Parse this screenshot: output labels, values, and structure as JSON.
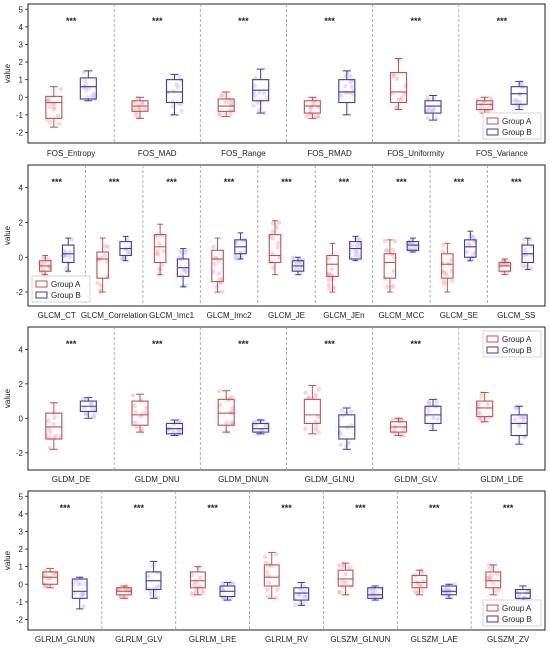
{
  "colors": {
    "group_a": "#c0504d",
    "group_b": "#3a3ab0",
    "jitter_a": "#f2a3b3",
    "jitter_b": "#c9b6e8",
    "divider": "#9a9a9a",
    "frame": "#222222"
  },
  "chart_data": [
    {
      "type": "box",
      "ylabel": "value",
      "ylim": [
        -2.6,
        5.3
      ],
      "yticks": [
        -2,
        -1,
        0,
        1,
        2,
        3,
        4,
        5
      ],
      "legend": {
        "placement": "bottom-right",
        "entries": [
          "Group A",
          "Group B"
        ]
      },
      "significance": "***",
      "features": [
        {
          "name": "FOS_Entropy",
          "sig": "***",
          "groups": [
            {
              "name": "Group A",
              "q1": -1.2,
              "median": -0.3,
              "q3": 0.05,
              "whisker_low": -1.7,
              "whisker_high": 0.6
            },
            {
              "name": "Group B",
              "q1": -0.1,
              "median": 0.6,
              "q3": 1.1,
              "whisker_low": -0.2,
              "whisker_high": 1.5
            }
          ]
        },
        {
          "name": "FOS_MAD",
          "sig": "***",
          "groups": [
            {
              "name": "Group A",
              "q1": -0.8,
              "median": -0.5,
              "q3": -0.2,
              "whisker_low": -1.2,
              "whisker_high": 0.0
            },
            {
              "name": "Group B",
              "q1": -0.3,
              "median": 0.3,
              "q3": 1.0,
              "whisker_low": -1.0,
              "whisker_high": 1.3
            }
          ]
        },
        {
          "name": "FOS_Range",
          "sig": "***",
          "groups": [
            {
              "name": "Group A",
              "q1": -0.8,
              "median": -0.5,
              "q3": -0.1,
              "whisker_low": -1.1,
              "whisker_high": 0.3
            },
            {
              "name": "Group B",
              "q1": -0.2,
              "median": 0.4,
              "q3": 1.0,
              "whisker_low": -0.9,
              "whisker_high": 1.6
            }
          ]
        },
        {
          "name": "FOS_RMAD",
          "sig": "***",
          "groups": [
            {
              "name": "Group A",
              "q1": -0.9,
              "median": -0.5,
              "q3": -0.2,
              "whisker_low": -1.2,
              "whisker_high": 0.0
            },
            {
              "name": "Group B",
              "q1": -0.3,
              "median": 0.3,
              "q3": 1.0,
              "whisker_low": -1.0,
              "whisker_high": 1.5
            }
          ]
        },
        {
          "name": "FOS_Uniformity",
          "sig": "***",
          "groups": [
            {
              "name": "Group A",
              "q1": -0.3,
              "median": 0.3,
              "q3": 1.4,
              "whisker_low": -0.7,
              "whisker_high": 2.2
            },
            {
              "name": "Group B",
              "q1": -0.9,
              "median": -0.5,
              "q3": -0.2,
              "whisker_low": -1.3,
              "whisker_high": 0.1
            }
          ]
        },
        {
          "name": "FOS_Variance",
          "sig": "***",
          "groups": [
            {
              "name": "Group A",
              "q1": -0.7,
              "median": -0.4,
              "q3": -0.2,
              "whisker_low": -0.9,
              "whisker_high": 0.0
            },
            {
              "name": "Group B",
              "q1": -0.4,
              "median": 0.2,
              "q3": 0.6,
              "whisker_low": -0.7,
              "whisker_high": 0.9
            }
          ]
        }
      ]
    },
    {
      "type": "box",
      "ylabel": "value",
      "ylim": [
        -2.8,
        5.3
      ],
      "yticks": [
        -2,
        0,
        2,
        4
      ],
      "legend": {
        "placement": "bottom-left",
        "entries": [
          "Group A",
          "Group B"
        ]
      },
      "significance": "***",
      "features": [
        {
          "name": "GLCM_CT",
          "sig": "***",
          "groups": [
            {
              "name": "Group A",
              "q1": -0.8,
              "median": -0.5,
              "q3": -0.2,
              "whisker_low": -1.0,
              "whisker_high": 0.1
            },
            {
              "name": "Group B",
              "q1": -0.3,
              "median": 0.2,
              "q3": 0.7,
              "whisker_low": -0.8,
              "whisker_high": 1.1
            }
          ]
        },
        {
          "name": "GLCM_Correlation",
          "sig": "***",
          "groups": [
            {
              "name": "Group A",
              "q1": -1.2,
              "median": -0.1,
              "q3": 0.3,
              "whisker_low": -2.0,
              "whisker_high": 1.1
            },
            {
              "name": "Group B",
              "q1": 0.1,
              "median": 0.5,
              "q3": 0.9,
              "whisker_low": -0.2,
              "whisker_high": 1.2
            }
          ]
        },
        {
          "name": "GLCM_Imc1",
          "sig": "***",
          "groups": [
            {
              "name": "Group A",
              "q1": -0.3,
              "median": 0.6,
              "q3": 1.3,
              "whisker_low": -1.0,
              "whisker_high": 1.9
            },
            {
              "name": "Group B",
              "q1": -1.1,
              "median": -0.6,
              "q3": -0.1,
              "whisker_low": -1.7,
              "whisker_high": 0.5
            }
          ]
        },
        {
          "name": "GLCM_Imc2",
          "sig": "***",
          "groups": [
            {
              "name": "Group A",
              "q1": -1.4,
              "median": -0.1,
              "q3": 0.4,
              "whisker_low": -2.0,
              "whisker_high": 1.1
            },
            {
              "name": "Group B",
              "q1": 0.2,
              "median": 0.6,
              "q3": 1.0,
              "whisker_low": -0.1,
              "whisker_high": 1.4
            }
          ]
        },
        {
          "name": "GLCM_JE",
          "sig": "***",
          "groups": [
            {
              "name": "Group A",
              "q1": -0.3,
              "median": 0.1,
              "q3": 1.3,
              "whisker_low": -1.0,
              "whisker_high": 2.1
            },
            {
              "name": "Group B",
              "q1": -0.8,
              "median": -0.5,
              "q3": -0.2,
              "whisker_low": -1.0,
              "whisker_high": 0.0
            }
          ]
        },
        {
          "name": "GLCM_JEn",
          "sig": "***",
          "groups": [
            {
              "name": "Group A",
              "q1": -1.1,
              "median": -0.4,
              "q3": 0.1,
              "whisker_low": -2.0,
              "whisker_high": 0.8
            },
            {
              "name": "Group B",
              "q1": -0.1,
              "median": 0.5,
              "q3": 0.9,
              "whisker_low": -0.2,
              "whisker_high": 1.2
            }
          ]
        },
        {
          "name": "GLCM_MCC",
          "sig": "***",
          "groups": [
            {
              "name": "Group A",
              "q1": -1.2,
              "median": -0.3,
              "q3": 0.2,
              "whisker_low": -2.0,
              "whisker_high": 1.0
            },
            {
              "name": "Group B",
              "q1": 0.4,
              "median": 0.7,
              "q3": 0.9,
              "whisker_low": 0.3,
              "whisker_high": 1.1
            }
          ]
        },
        {
          "name": "GLCM_SE",
          "sig": "***",
          "groups": [
            {
              "name": "Group A",
              "q1": -1.2,
              "median": -0.4,
              "q3": 0.2,
              "whisker_low": -2.0,
              "whisker_high": 0.8
            },
            {
              "name": "Group B",
              "q1": 0.0,
              "median": 0.6,
              "q3": 1.0,
              "whisker_low": -0.2,
              "whisker_high": 1.5
            }
          ]
        },
        {
          "name": "GLCM_SS",
          "sig": "***",
          "groups": [
            {
              "name": "Group A",
              "q1": -0.8,
              "median": -0.5,
              "q3": -0.3,
              "whisker_low": -1.0,
              "whisker_high": -0.1
            },
            {
              "name": "Group B",
              "q1": -0.3,
              "median": 0.2,
              "q3": 0.7,
              "whisker_low": -0.7,
              "whisker_high": 1.1
            }
          ]
        }
      ]
    },
    {
      "type": "box",
      "ylabel": "value",
      "ylim": [
        -3.0,
        5.3
      ],
      "yticks": [
        -2,
        0,
        2,
        4
      ],
      "legend": {
        "placement": "top-right",
        "entries": [
          "Group A",
          "Group B"
        ]
      },
      "significance": "***",
      "features": [
        {
          "name": "GLDM_DE",
          "sig": "***",
          "groups": [
            {
              "name": "Group A",
              "q1": -1.2,
              "median": -0.5,
              "q3": 0.3,
              "whisker_low": -1.8,
              "whisker_high": 0.9
            },
            {
              "name": "Group B",
              "q1": 0.4,
              "median": 0.7,
              "q3": 1.0,
              "whisker_low": 0.0,
              "whisker_high": 1.2
            }
          ]
        },
        {
          "name": "GLDM_DNU",
          "sig": "***",
          "groups": [
            {
              "name": "Group A",
              "q1": -0.4,
              "median": 0.2,
              "q3": 1.0,
              "whisker_low": -0.8,
              "whisker_high": 1.4
            },
            {
              "name": "Group B",
              "q1": -0.9,
              "median": -0.6,
              "q3": -0.3,
              "whisker_low": -1.0,
              "whisker_high": -0.1
            }
          ]
        },
        {
          "name": "GLDM_DNUN",
          "sig": "***",
          "groups": [
            {
              "name": "Group A",
              "q1": -0.4,
              "median": 0.3,
              "q3": 1.1,
              "whisker_low": -0.8,
              "whisker_high": 1.6
            },
            {
              "name": "Group B",
              "q1": -0.8,
              "median": -0.6,
              "q3": -0.3,
              "whisker_low": -0.9,
              "whisker_high": -0.1
            }
          ]
        },
        {
          "name": "GLDM_GLNU",
          "sig": "***",
          "groups": [
            {
              "name": "Group A",
              "q1": -0.3,
              "median": 0.2,
              "q3": 1.1,
              "whisker_low": -0.9,
              "whisker_high": 1.9
            },
            {
              "name": "Group B",
              "q1": -1.2,
              "median": -0.5,
              "q3": 0.2,
              "whisker_low": -1.8,
              "whisker_high": 0.6
            }
          ]
        },
        {
          "name": "GLDM_GLV",
          "sig": "***",
          "groups": [
            {
              "name": "Group A",
              "q1": -0.8,
              "median": -0.5,
              "q3": -0.2,
              "whisker_low": -1.0,
              "whisker_high": 0.0
            },
            {
              "name": "Group B",
              "q1": -0.3,
              "median": 0.2,
              "q3": 0.7,
              "whisker_low": -0.7,
              "whisker_high": 1.1
            }
          ]
        },
        {
          "name": "GLDM_LDE",
          "sig": "",
          "groups": [
            {
              "name": "Group A",
              "q1": 0.1,
              "median": 0.6,
              "q3": 1.0,
              "whisker_low": -0.2,
              "whisker_high": 1.5
            },
            {
              "name": "Group B",
              "q1": -1.0,
              "median": -0.3,
              "q3": 0.2,
              "whisker_low": -1.5,
              "whisker_high": 0.7
            }
          ]
        }
      ]
    },
    {
      "type": "box",
      "ylabel": "value",
      "ylim": [
        -2.6,
        5.3
      ],
      "yticks": [
        -2,
        -1,
        0,
        1,
        2,
        3,
        4,
        5
      ],
      "legend": {
        "placement": "bottom-right",
        "entries": [
          "Group A",
          "Group B"
        ]
      },
      "significance": "***",
      "features": [
        {
          "name": "GLRLM_GLNUN",
          "sig": "***",
          "groups": [
            {
              "name": "Group A",
              "q1": 0.0,
              "median": 0.4,
              "q3": 0.7,
              "whisker_low": -0.2,
              "whisker_high": 0.9
            },
            {
              "name": "Group B",
              "q1": -0.8,
              "median": -0.4,
              "q3": 0.3,
              "whisker_low": -1.4,
              "whisker_high": 0.4
            }
          ]
        },
        {
          "name": "GLRLM_GLV",
          "sig": "***",
          "groups": [
            {
              "name": "Group A",
              "q1": -0.6,
              "median": -0.4,
              "q3": -0.2,
              "whisker_low": -0.8,
              "whisker_high": -0.1
            },
            {
              "name": "Group B",
              "q1": -0.3,
              "median": 0.2,
              "q3": 0.7,
              "whisker_low": -0.8,
              "whisker_high": 1.3
            }
          ]
        },
        {
          "name": "GLRLM_LRE",
          "sig": "***",
          "groups": [
            {
              "name": "Group A",
              "q1": -0.2,
              "median": 0.2,
              "q3": 0.7,
              "whisker_low": -0.6,
              "whisker_high": 1.0
            },
            {
              "name": "Group B",
              "q1": -0.7,
              "median": -0.4,
              "q3": -0.1,
              "whisker_low": -0.9,
              "whisker_high": 0.1
            }
          ]
        },
        {
          "name": "GLRLM_RV",
          "sig": "***",
          "groups": [
            {
              "name": "Group A",
              "q1": -0.1,
              "median": 0.4,
              "q3": 1.1,
              "whisker_low": -0.8,
              "whisker_high": 1.8
            },
            {
              "name": "Group B",
              "q1": -0.9,
              "median": -0.5,
              "q3": -0.2,
              "whisker_low": -1.2,
              "whisker_high": 0.1
            }
          ]
        },
        {
          "name": "GLSZM_GLNUN",
          "sig": "***",
          "groups": [
            {
              "name": "Group A",
              "q1": -0.1,
              "median": 0.3,
              "q3": 0.8,
              "whisker_low": -0.6,
              "whisker_high": 1.2
            },
            {
              "name": "Group B",
              "q1": -0.8,
              "median": -0.6,
              "q3": -0.2,
              "whisker_low": -0.9,
              "whisker_high": -0.1
            }
          ]
        },
        {
          "name": "GLSZM_LAE",
          "sig": "***",
          "groups": [
            {
              "name": "Group A",
              "q1": -0.2,
              "median": 0.1,
              "q3": 0.5,
              "whisker_low": -0.6,
              "whisker_high": 0.8
            },
            {
              "name": "Group B",
              "q1": -0.6,
              "median": -0.4,
              "q3": -0.1,
              "whisker_low": -0.8,
              "whisker_high": 0.0
            }
          ]
        },
        {
          "name": "GLSZM_ZV",
          "sig": "***",
          "groups": [
            {
              "name": "Group A",
              "q1": -0.2,
              "median": 0.2,
              "q3": 0.7,
              "whisker_low": -0.6,
              "whisker_high": 1.1
            },
            {
              "name": "Group B",
              "q1": -0.8,
              "median": -0.5,
              "q3": -0.3,
              "whisker_low": -0.9,
              "whisker_high": -0.1
            }
          ]
        }
      ]
    }
  ]
}
